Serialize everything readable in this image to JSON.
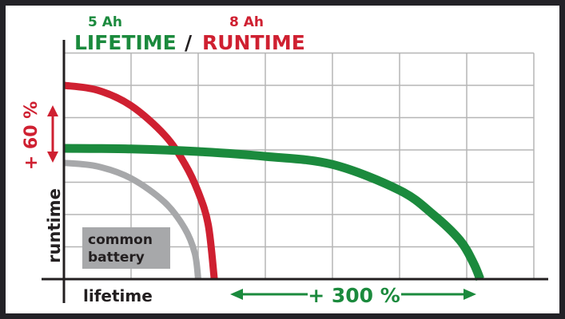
{
  "chart_data": {
    "type": "line",
    "title": {
      "green_sub": "5 Ah",
      "green_main": "LIFETIME",
      "separator": "/",
      "red_sub": "8 Ah",
      "red_main": "RUNTIME"
    },
    "xlabel": "lifetime",
    "ylabel": "runtime",
    "grid": true,
    "xlim": [
      0,
      7
    ],
    "ylim": [
      0,
      7
    ],
    "series": [
      {
        "color": "#cf2031",
        "points": [
          [
            0,
            6.0
          ],
          [
            0.5,
            5.85
          ],
          [
            1,
            5.37
          ],
          [
            1.5,
            4.46
          ],
          [
            1.8,
            3.57
          ],
          [
            2.0,
            2.7
          ],
          [
            2.15,
            1.68
          ],
          [
            2.24,
            0
          ]
        ]
      },
      {
        "color": "#a7a8aa",
        "points": [
          [
            0,
            3.6
          ],
          [
            0.5,
            3.49
          ],
          [
            1,
            3.12
          ],
          [
            1.5,
            2.38
          ],
          [
            1.8,
            1.57
          ],
          [
            1.95,
            0.8
          ],
          [
            2.0,
            0
          ]
        ]
      },
      {
        "color": "#1b8a3d",
        "points": [
          [
            0,
            4.05
          ],
          [
            1,
            4.03
          ],
          [
            2,
            3.95
          ],
          [
            3,
            3.8
          ],
          [
            4,
            3.55
          ],
          [
            5,
            2.75
          ],
          [
            5.5,
            2.0
          ],
          [
            5.9,
            1.2
          ],
          [
            6.1,
            0.5
          ],
          [
            6.2,
            0
          ]
        ]
      }
    ],
    "annotations": {
      "runtime_gain": "+ 60 %",
      "lifetime_gain": "+ 300 %",
      "common_battery": [
        "common",
        "battery"
      ]
    },
    "colors": {
      "green": "#1b8a3d",
      "red": "#cf2031",
      "gray": "#a7a8aa",
      "dark": "#231f20"
    }
  }
}
